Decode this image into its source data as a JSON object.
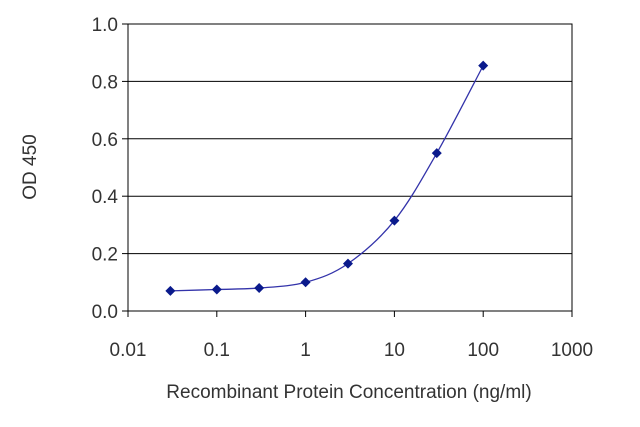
{
  "chart_data": {
    "type": "line",
    "x_scale": "log",
    "xlabel": "Recombinant Protein Concentration (ng/ml)",
    "ylabel": "OD 450",
    "xlim": [
      0.01,
      1000
    ],
    "ylim": [
      0.0,
      1.0
    ],
    "x_ticks": [
      "0.01",
      "0.1",
      "1",
      "10",
      "100",
      "1000"
    ],
    "y_ticks": [
      "0.0",
      "0.2",
      "0.4",
      "0.6",
      "0.8",
      "1.0"
    ],
    "grid": "horizontal",
    "series": [
      {
        "color": "#3333aa",
        "marker_color": "#0a1a8c",
        "points": [
          {
            "x": 0.03,
            "y": 0.07
          },
          {
            "x": 0.1,
            "y": 0.075
          },
          {
            "x": 0.3,
            "y": 0.08
          },
          {
            "x": 1,
            "y": 0.1
          },
          {
            "x": 3,
            "y": 0.165
          },
          {
            "x": 10,
            "y": 0.315
          },
          {
            "x": 30,
            "y": 0.55
          },
          {
            "x": 100,
            "y": 0.855
          }
        ]
      }
    ]
  }
}
